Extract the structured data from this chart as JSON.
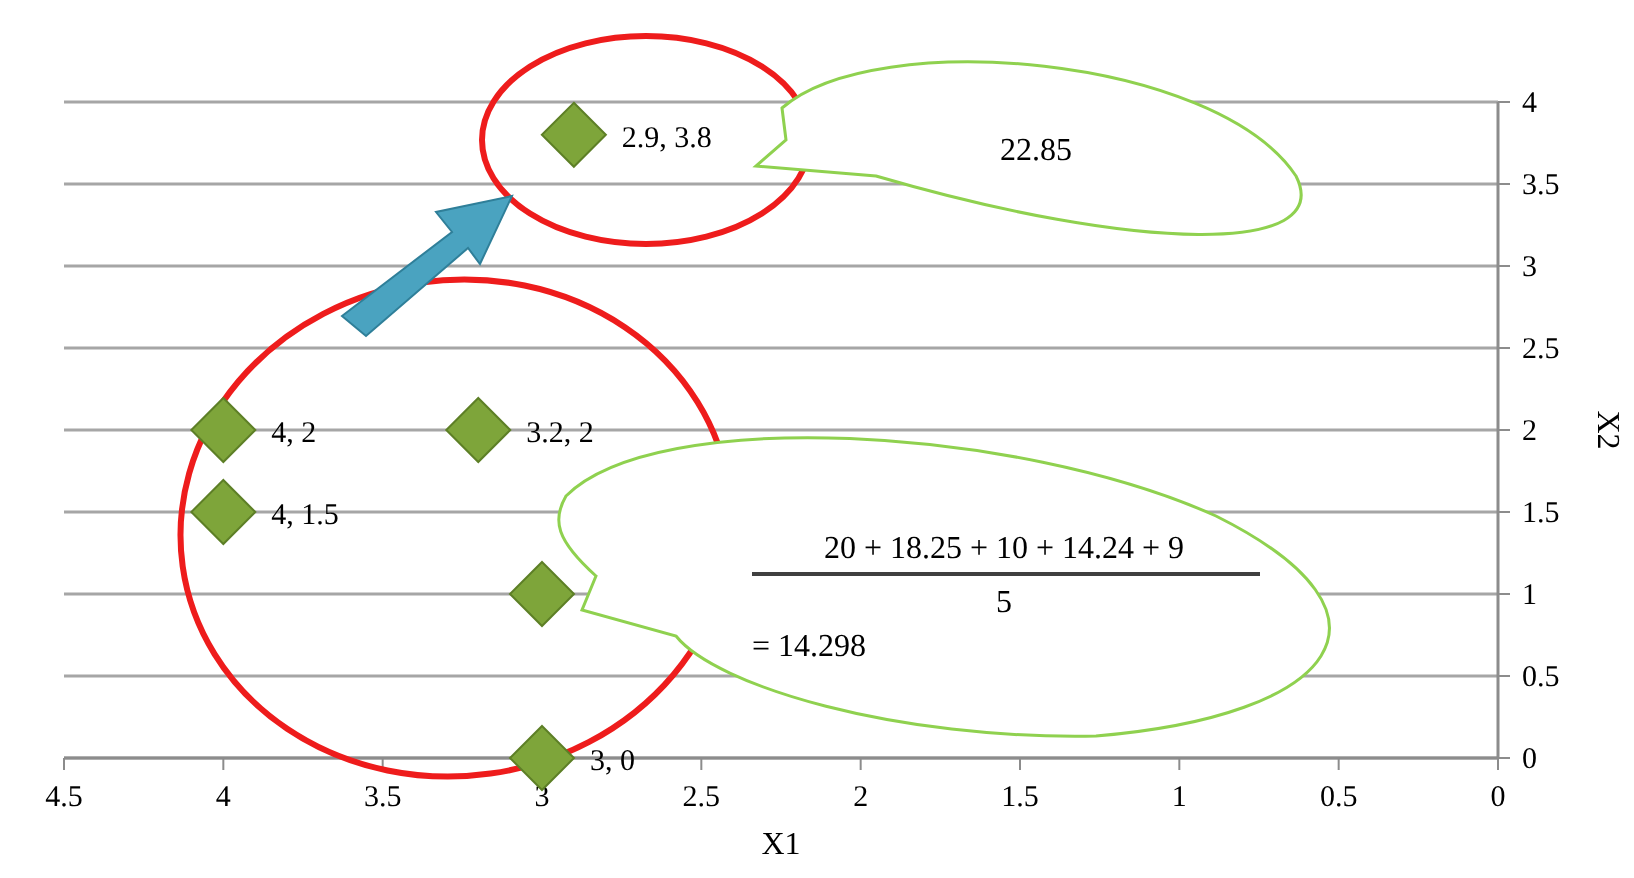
{
  "chart_data": {
    "type": "scatter",
    "xlabel": "X1",
    "ylabel": "X2",
    "x": [
      4,
      3.2,
      4,
      3,
      3,
      2.9
    ],
    "values": [
      2,
      2,
      1.5,
      1,
      0,
      3.8
    ],
    "value_labels": [
      "4, 2",
      "3.2, 2",
      "4, 1.5",
      null,
      "3, 0",
      "2.9, 3.8"
    ],
    "color": "#7ea53a",
    "marker": "diamond",
    "grid": "y",
    "xlim": [
      4.5,
      0
    ],
    "xticks": [
      4.5,
      4,
      3.5,
      3,
      2.5,
      2,
      1.5,
      1,
      0.5,
      0
    ],
    "ylim": [
      0,
      4
    ],
    "yticks": [
      0,
      0.5,
      1,
      1.5,
      2,
      2.5,
      3,
      3.5,
      4
    ],
    "annotations": [
      "22.85",
      "20 + 18.25 + 10 + 14.24 + 9",
      "5",
      "= 14.298"
    ]
  }
}
